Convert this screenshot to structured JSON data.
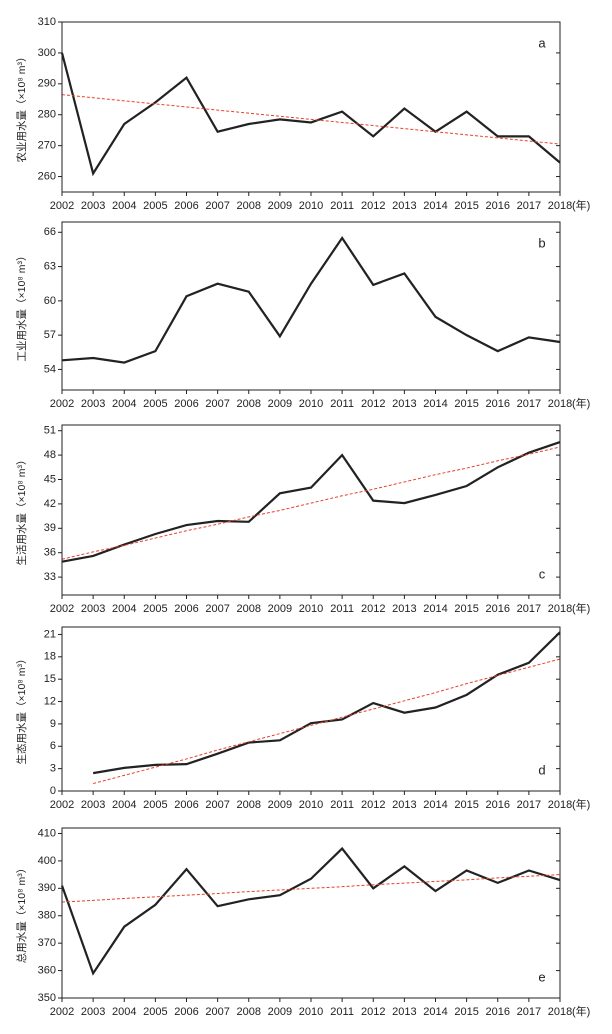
{
  "chart_data": [
    {
      "type": "line",
      "panel_label": "a",
      "ylabel": "农业用水量（×10⁸ m³）",
      "xlabel": "(年)",
      "categories": [
        "2002",
        "2003",
        "2004",
        "2005",
        "2006",
        "2007",
        "2008",
        "2009",
        "2010",
        "2011",
        "2012",
        "2013",
        "2014",
        "2015",
        "2016",
        "2017",
        "2018"
      ],
      "ylim": [
        255,
        310
      ],
      "yticks": [
        260,
        270,
        280,
        290,
        300,
        310
      ],
      "series": [
        {
          "color": "#222222",
          "dashed": false,
          "values": [
            300,
            261,
            277,
            284,
            292,
            274.5,
            277,
            278.5,
            277.5,
            281,
            273,
            282,
            274.5,
            281,
            273,
            273,
            264.5
          ]
        },
        {
          "color": "#e8402a",
          "dashed": true,
          "values": [
            286.5,
            285.5,
            284.5,
            283.5,
            282.5,
            281.5,
            280.5,
            279.5,
            278.5,
            277.5,
            276.5,
            275.5,
            274.5,
            273.5,
            272.5,
            271.5,
            270.5
          ]
        }
      ]
    },
    {
      "type": "line",
      "panel_label": "b",
      "ylabel": "工业用水量（×10⁸ m³）",
      "xlabel": "(年)",
      "categories": [
        "2002",
        "2003",
        "2004",
        "2005",
        "2006",
        "2007",
        "2008",
        "2009",
        "2010",
        "2011",
        "2012",
        "2013",
        "2014",
        "2015",
        "2016",
        "2017",
        "2018"
      ],
      "ylim": [
        52.2,
        66.9
      ],
      "yticks": [
        54,
        57,
        60,
        63,
        66
      ],
      "series": [
        {
          "color": "#222222",
          "dashed": false,
          "values": [
            54.8,
            55.0,
            54.6,
            55.6,
            60.4,
            61.5,
            60.8,
            56.9,
            61.5,
            65.5,
            61.4,
            62.4,
            58.6,
            57.0,
            55.6,
            56.8,
            56.4
          ]
        }
      ]
    },
    {
      "type": "line",
      "panel_label": "c",
      "ylabel": "生活用水量（×10⁸ m³）",
      "xlabel": "(年)",
      "categories": [
        "2002",
        "2003",
        "2004",
        "2005",
        "2006",
        "2007",
        "2008",
        "2009",
        "2010",
        "2011",
        "2012",
        "2013",
        "2014",
        "2015",
        "2016",
        "2017",
        "2018"
      ],
      "ylim": [
        30.8,
        51.7
      ],
      "yticks": [
        33,
        36,
        39,
        42,
        45,
        48,
        51
      ],
      "series": [
        {
          "color": "#222222",
          "dashed": false,
          "values": [
            34.9,
            35.6,
            37.0,
            38.3,
            39.4,
            39.9,
            39.8,
            43.3,
            44.0,
            48.0,
            42.4,
            42.1,
            43.1,
            44.2,
            46.5,
            48.3,
            49.6
          ]
        },
        {
          "color": "#e8402a",
          "dashed": true,
          "values": [
            35.2,
            36.1,
            36.9,
            37.8,
            38.7,
            39.5,
            40.4,
            41.2,
            42.1,
            43.0,
            43.8,
            44.7,
            45.6,
            46.4,
            47.3,
            48.1,
            49.0
          ]
        }
      ]
    },
    {
      "type": "line",
      "panel_label": "d",
      "ylabel": "生态用水量（×10⁸ m³）",
      "xlabel": "(年)",
      "categories": [
        "2002",
        "2003",
        "2004",
        "2005",
        "2006",
        "2007",
        "2008",
        "2009",
        "2010",
        "2011",
        "2012",
        "2013",
        "2014",
        "2015",
        "2016",
        "2017",
        "2018"
      ],
      "ylim": [
        0,
        22
      ],
      "yticks": [
        0,
        3,
        6,
        9,
        12,
        15,
        18,
        21
      ],
      "series": [
        {
          "color": "#222222",
          "dashed": false,
          "values": [
            null,
            2.4,
            3.1,
            3.5,
            3.6,
            5.0,
            6.5,
            6.8,
            9.1,
            9.6,
            11.8,
            10.5,
            11.2,
            12.9,
            15.6,
            17.2,
            21.3
          ]
        },
        {
          "color": "#e8402a",
          "dashed": true,
          "values": [
            null,
            1.0,
            2.1,
            3.2,
            4.3,
            5.5,
            6.6,
            7.7,
            8.8,
            9.9,
            11.0,
            12.1,
            13.2,
            14.4,
            15.5,
            16.6,
            17.7
          ]
        }
      ]
    },
    {
      "type": "line",
      "panel_label": "e",
      "ylabel": "总用水量（×10⁸ m³）",
      "xlabel": "(年)",
      "categories": [
        "2002",
        "2003",
        "2004",
        "2005",
        "2006",
        "2007",
        "2008",
        "2009",
        "2010",
        "2011",
        "2012",
        "2013",
        "2014",
        "2015",
        "2016",
        "2017",
        "2018"
      ],
      "ylim": [
        350,
        412
      ],
      "yticks": [
        350,
        360,
        370,
        380,
        390,
        400,
        410
      ],
      "series": [
        {
          "color": "#222222",
          "dashed": false,
          "values": [
            391,
            359,
            376,
            384,
            397,
            383.5,
            386,
            387.5,
            393.5,
            404.5,
            390,
            398,
            389,
            396.5,
            392,
            396.5,
            393
          ]
        },
        {
          "color": "#e8402a",
          "dashed": true,
          "values": [
            385,
            385.6,
            386.3,
            386.9,
            387.5,
            388.1,
            388.8,
            389.4,
            390,
            390.6,
            391.3,
            391.9,
            392.5,
            393.1,
            393.8,
            394.4,
            395
          ]
        }
      ]
    }
  ]
}
